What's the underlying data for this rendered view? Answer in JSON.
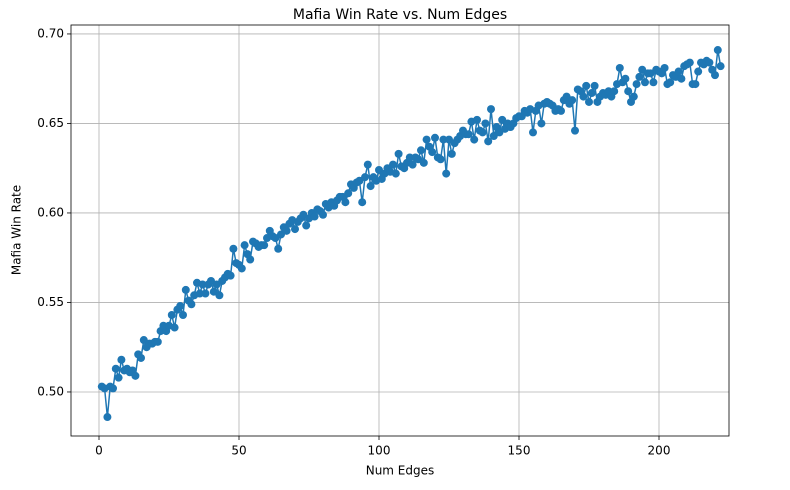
{
  "chart_data": {
    "type": "line",
    "title": "Mafia Win Rate vs. Num Edges",
    "x_label": "Num Edges",
    "y_label": "Mafia Win Rate",
    "color": "#1f77b4",
    "grid": true,
    "markers": true,
    "xlim": [
      -10,
      225
    ],
    "ylim": [
      0.4754,
      0.705
    ],
    "xticks": [
      0,
      50,
      100,
      150,
      200
    ],
    "yticks": [
      {
        "value": 0.5,
        "label": "0.50"
      },
      0.55,
      {
        "value": 0.6,
        "label": "0.60"
      },
      0.65,
      {
        "value": 0.7,
        "label": "0.70"
      }
    ],
    "x": [
      1,
      2,
      3,
      4,
      5,
      6,
      7,
      8,
      9,
      10,
      11,
      12,
      13,
      14,
      15,
      16,
      17,
      18,
      19,
      20,
      21,
      22,
      23,
      24,
      25,
      26,
      27,
      28,
      29,
      30,
      31,
      32,
      33,
      34,
      35,
      36,
      37,
      38,
      39,
      40,
      41,
      42,
      43,
      44,
      45,
      46,
      47,
      48,
      49,
      50,
      51,
      52,
      53,
      54,
      55,
      56,
      57,
      58,
      59,
      60,
      61,
      62,
      63,
      64,
      65,
      66,
      67,
      68,
      69,
      70,
      71,
      72,
      73,
      74,
      75,
      76,
      77,
      78,
      79,
      80,
      81,
      82,
      83,
      84,
      85,
      86,
      87,
      88,
      89,
      90,
      91,
      92,
      93,
      94,
      95,
      96,
      97,
      98,
      99,
      100,
      101,
      102,
      103,
      104,
      105,
      106,
      107,
      108,
      109,
      110,
      111,
      112,
      113,
      114,
      115,
      116,
      117,
      118,
      119,
      120,
      121,
      122,
      123,
      124,
      125,
      126,
      127,
      128,
      129,
      130,
      131,
      132,
      133,
      134,
      135,
      136,
      137,
      138,
      139,
      140,
      141,
      142,
      143,
      144,
      145,
      146,
      147,
      148,
      149,
      150,
      151,
      152,
      153,
      154,
      155,
      156,
      157,
      158,
      159,
      160,
      161,
      162,
      163,
      164,
      165,
      166,
      167,
      168,
      169,
      170,
      171,
      172,
      173,
      174,
      175,
      176,
      177,
      178,
      179,
      180,
      181,
      182,
      183,
      184,
      185,
      186,
      187,
      188,
      189,
      190,
      191,
      192,
      193,
      194,
      195,
      196,
      197,
      198,
      199,
      200,
      201,
      202,
      203,
      204,
      205,
      206,
      207,
      208,
      209,
      210,
      211,
      212,
      213,
      214,
      215,
      216,
      217,
      218,
      219,
      220,
      221,
      222
    ],
    "values": [
      0.503,
      0.502,
      0.486,
      0.503,
      0.502,
      0.513,
      0.508,
      0.518,
      0.512,
      0.513,
      0.511,
      0.512,
      0.509,
      0.521,
      0.519,
      0.529,
      0.525,
      0.527,
      0.527,
      0.528,
      0.528,
      0.534,
      0.537,
      0.534,
      0.537,
      0.543,
      0.536,
      0.546,
      0.548,
      0.543,
      0.557,
      0.551,
      0.549,
      0.554,
      0.561,
      0.555,
      0.56,
      0.555,
      0.56,
      0.562,
      0.556,
      0.56,
      0.554,
      0.562,
      0.564,
      0.566,
      0.565,
      0.58,
      0.572,
      0.571,
      0.569,
      0.582,
      0.577,
      0.574,
      0.584,
      0.583,
      0.581,
      0.582,
      0.582,
      0.586,
      0.59,
      0.587,
      0.586,
      0.58,
      0.588,
      0.592,
      0.59,
      0.594,
      0.596,
      0.591,
      0.595,
      0.597,
      0.599,
      0.593,
      0.597,
      0.6,
      0.598,
      0.602,
      0.601,
      0.599,
      0.605,
      0.603,
      0.606,
      0.604,
      0.607,
      0.609,
      0.609,
      0.606,
      0.611,
      0.616,
      0.614,
      0.617,
      0.618,
      0.606,
      0.62,
      0.627,
      0.615,
      0.62,
      0.618,
      0.624,
      0.619,
      0.622,
      0.625,
      0.623,
      0.627,
      0.622,
      0.633,
      0.626,
      0.625,
      0.628,
      0.631,
      0.627,
      0.631,
      0.63,
      0.635,
      0.628,
      0.641,
      0.637,
      0.634,
      0.642,
      0.631,
      0.63,
      0.641,
      0.622,
      0.641,
      0.633,
      0.639,
      0.641,
      0.643,
      0.646,
      0.644,
      0.644,
      0.651,
      0.641,
      0.652,
      0.646,
      0.645,
      0.65,
      0.64,
      0.658,
      0.643,
      0.648,
      0.645,
      0.652,
      0.647,
      0.65,
      0.648,
      0.65,
      0.653,
      0.654,
      0.654,
      0.657,
      0.656,
      0.658,
      0.645,
      0.657,
      0.66,
      0.65,
      0.661,
      0.662,
      0.661,
      0.66,
      0.657,
      0.658,
      0.657,
      0.663,
      0.665,
      0.661,
      0.663,
      0.646,
      0.669,
      0.668,
      0.665,
      0.671,
      0.662,
      0.667,
      0.671,
      0.662,
      0.665,
      0.667,
      0.666,
      0.668,
      0.665,
      0.668,
      0.672,
      0.681,
      0.673,
      0.675,
      0.668,
      0.662,
      0.665,
      0.672,
      0.676,
      0.68,
      0.673,
      0.678,
      0.678,
      0.673,
      0.68,
      0.679,
      0.678,
      0.681,
      0.672,
      0.673,
      0.677,
      0.676,
      0.679,
      0.675,
      0.682,
      0.683,
      0.684,
      0.672,
      0.672,
      0.679,
      0.684,
      0.683,
      0.685,
      0.684,
      0.68,
      0.677,
      0.691,
      0.682
    ]
  }
}
